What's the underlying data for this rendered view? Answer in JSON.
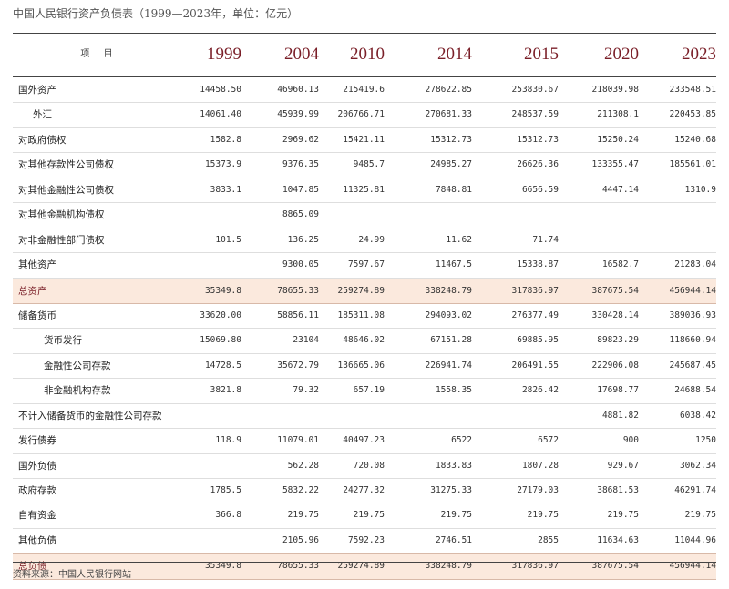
{
  "title": "中国人民银行资产负债表（1999—2023年，单位：亿元）",
  "header": {
    "label": "项 目",
    "years": [
      "1999",
      "2004",
      "2010",
      "2014",
      "2015",
      "2020",
      "2023"
    ]
  },
  "rows": [
    {
      "label": "国外资产",
      "indent": 0,
      "total": false,
      "values": [
        "14458.50",
        "46960.13",
        "215419.6",
        "278622.85",
        "253830.67",
        "218039.98",
        "233548.51"
      ]
    },
    {
      "label": "外汇",
      "indent": 1,
      "total": false,
      "values": [
        "14061.40",
        "45939.99",
        "206766.71",
        "270681.33",
        "248537.59",
        "211308.1",
        "220453.85"
      ]
    },
    {
      "label": "对政府债权",
      "indent": 0,
      "total": false,
      "values": [
        "1582.8",
        "2969.62",
        "15421.11",
        "15312.73",
        "15312.73",
        "15250.24",
        "15240.68"
      ]
    },
    {
      "label": "对其他存款性公司债权",
      "indent": 0,
      "total": false,
      "values": [
        "15373.9",
        "9376.35",
        "9485.7",
        "24985.27",
        "26626.36",
        "133355.47",
        "185561.01"
      ]
    },
    {
      "label": "对其他金融性公司债权",
      "indent": 0,
      "total": false,
      "values": [
        "3833.1",
        "1047.85",
        "11325.81",
        "7848.81",
        "6656.59",
        "4447.14",
        "1310.9"
      ]
    },
    {
      "label": "对其他金融机构债权",
      "indent": 0,
      "total": false,
      "values": [
        "",
        "8865.09",
        "",
        "",
        "",
        "",
        ""
      ]
    },
    {
      "label": "对非金融性部门债权",
      "indent": 0,
      "total": false,
      "values": [
        "101.5",
        "136.25",
        "24.99",
        "11.62",
        "71.74",
        "",
        ""
      ]
    },
    {
      "label": "其他资产",
      "indent": 0,
      "total": false,
      "values": [
        "",
        "9300.05",
        "7597.67",
        "11467.5",
        "15338.87",
        "16582.7",
        "21283.04"
      ]
    },
    {
      "label": "总资产",
      "indent": 0,
      "total": true,
      "values": [
        "35349.8",
        "78655.33",
        "259274.89",
        "338248.79",
        "317836.97",
        "387675.54",
        "456944.14"
      ]
    },
    {
      "label": "储备货币",
      "indent": 0,
      "total": false,
      "values": [
        "33620.00",
        "58856.11",
        "185311.08",
        "294093.02",
        "276377.49",
        "330428.14",
        "389036.93"
      ]
    },
    {
      "label": "货币发行",
      "indent": 2,
      "total": false,
      "values": [
        "15069.80",
        "23104",
        "48646.02",
        "67151.28",
        "69885.95",
        "89823.29",
        "118660.94"
      ]
    },
    {
      "label": "金融性公司存款",
      "indent": 2,
      "total": false,
      "values": [
        "14728.5",
        "35672.79",
        "136665.06",
        "226941.74",
        "206491.55",
        "222906.08",
        "245687.45"
      ]
    },
    {
      "label": "非金融机构存款",
      "indent": 2,
      "total": false,
      "values": [
        "3821.8",
        "79.32",
        "657.19",
        "1558.35",
        "2826.42",
        "17698.77",
        "24688.54"
      ]
    },
    {
      "label": "不计入储备货币的金融性公司存款",
      "indent": 0,
      "total": false,
      "values": [
        "",
        "",
        "",
        "",
        "",
        "4881.82",
        "6038.42"
      ]
    },
    {
      "label": "发行债券",
      "indent": 0,
      "total": false,
      "values": [
        "118.9",
        "11079.01",
        "40497.23",
        "6522",
        "6572",
        "900",
        "1250"
      ]
    },
    {
      "label": "国外负债",
      "indent": 0,
      "total": false,
      "values": [
        "",
        "562.28",
        "720.08",
        "1833.83",
        "1807.28",
        "929.67",
        "3062.34"
      ]
    },
    {
      "label": "政府存款",
      "indent": 0,
      "total": false,
      "values": [
        "1785.5",
        "5832.22",
        "24277.32",
        "31275.33",
        "27179.03",
        "38681.53",
        "46291.74"
      ]
    },
    {
      "label": "自有资金",
      "indent": 0,
      "total": false,
      "values": [
        "366.8",
        "219.75",
        "219.75",
        "219.75",
        "219.75",
        "219.75",
        "219.75"
      ]
    },
    {
      "label": "其他负债",
      "indent": 0,
      "total": false,
      "values": [
        "",
        "2105.96",
        "7592.23",
        "2746.51",
        "2855",
        "11634.63",
        "11044.96"
      ]
    },
    {
      "label": "总负债",
      "indent": 0,
      "total": true,
      "values": [
        "35349.8",
        "78655.33",
        "259274.89",
        "338248.79",
        "317836.97",
        "387675.54",
        "456944.14"
      ]
    }
  ],
  "source": "资料来源：中国人民银行网站"
}
